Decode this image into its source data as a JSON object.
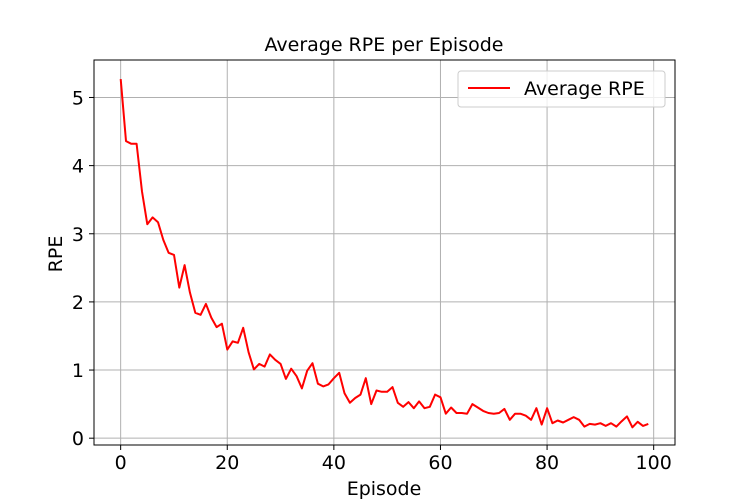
{
  "chart_data": {
    "type": "line",
    "title": "Average RPE per Episode",
    "xlabel": "Episode",
    "ylabel": "RPE",
    "xlim": [
      -5,
      104
    ],
    "ylim": [
      -0.1,
      5.55
    ],
    "xticks": [
      0,
      20,
      40,
      60,
      80,
      100
    ],
    "xtick_labels": [
      "0",
      "20",
      "40",
      "60",
      "80",
      "100"
    ],
    "yticks": [
      0,
      1,
      2,
      3,
      4,
      5
    ],
    "ytick_labels": [
      "0",
      "1",
      "2",
      "3",
      "4",
      "5"
    ],
    "grid": true,
    "legend": {
      "position": "top-right"
    },
    "series": [
      {
        "name": "Average RPE",
        "color": "#ff0000",
        "x": [
          0,
          1,
          2,
          3,
          4,
          5,
          6,
          7,
          8,
          9,
          10,
          11,
          12,
          13,
          14,
          15,
          16,
          17,
          18,
          19,
          20,
          21,
          22,
          23,
          24,
          25,
          26,
          27,
          28,
          29,
          30,
          31,
          32,
          33,
          34,
          35,
          36,
          37,
          38,
          39,
          40,
          41,
          42,
          43,
          44,
          45,
          46,
          47,
          48,
          49,
          50,
          51,
          52,
          53,
          54,
          55,
          56,
          57,
          58,
          59,
          60,
          61,
          62,
          63,
          64,
          65,
          66,
          67,
          68,
          69,
          70,
          71,
          72,
          73,
          74,
          75,
          76,
          77,
          78,
          79,
          80,
          81,
          82,
          83,
          84,
          85,
          86,
          87,
          88,
          89,
          90,
          91,
          92,
          93,
          94,
          95,
          96,
          97,
          98,
          99
        ],
        "values": [
          5.27,
          4.36,
          4.32,
          4.32,
          3.62,
          3.14,
          3.24,
          3.17,
          2.91,
          2.72,
          2.69,
          2.21,
          2.54,
          2.14,
          1.84,
          1.81,
          1.97,
          1.77,
          1.63,
          1.68,
          1.3,
          1.42,
          1.4,
          1.62,
          1.26,
          1.01,
          1.09,
          1.05,
          1.23,
          1.15,
          1.09,
          0.87,
          1.02,
          0.91,
          0.73,
          0.99,
          1.1,
          0.8,
          0.76,
          0.79,
          0.88,
          0.96,
          0.66,
          0.52,
          0.59,
          0.64,
          0.88,
          0.5,
          0.7,
          0.68,
          0.68,
          0.75,
          0.52,
          0.46,
          0.53,
          0.44,
          0.54,
          0.44,
          0.46,
          0.64,
          0.6,
          0.36,
          0.45,
          0.37,
          0.37,
          0.36,
          0.5,
          0.45,
          0.4,
          0.37,
          0.36,
          0.37,
          0.43,
          0.27,
          0.36,
          0.36,
          0.33,
          0.27,
          0.44,
          0.2,
          0.44,
          0.22,
          0.26,
          0.23,
          0.27,
          0.31,
          0.27,
          0.17,
          0.21,
          0.2,
          0.22,
          0.18,
          0.22,
          0.17,
          0.25,
          0.32,
          0.16,
          0.24,
          0.18,
          0.21
        ]
      }
    ]
  }
}
